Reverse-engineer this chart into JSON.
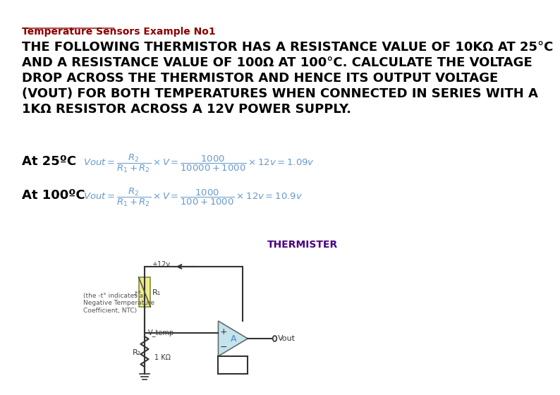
{
  "title": "Temperature Sensors Example No1",
  "title_color": "#8B0000",
  "title_underline": true,
  "body_text_color": "#000000",
  "line1": "THE FOLLOWING THERMISTOR HAS A RESISTANCE VALUE OF 10KΩ AT 25°C",
  "line2": "AND A RESISTANCE VALUE OF 100Ω AT 100°C. CALCULATE THE VOLTAGE",
  "line3": "DROP ACROSS THE THERMISTOR AND HENCE ITS OUTPUT VOLTAGE",
  "line4": "(VOUT) FOR BOTH TEMPERATURES WHEN CONNECTED IN SERIES WITH A",
  "line5": "1KΩ RESISTOR ACROSS A 12V POWER SUPPLY.",
  "label_25": "At 25ºC",
  "label_100": "At 100ºC",
  "formula_color": "#6699CC",
  "thermister_label": "THERMISTER",
  "thermister_color": "#4B0082",
  "circuit_color": "#333333",
  "bg_color": "#ffffff",
  "font_size_title": 10,
  "font_size_body": 13,
  "font_size_labels": 13
}
